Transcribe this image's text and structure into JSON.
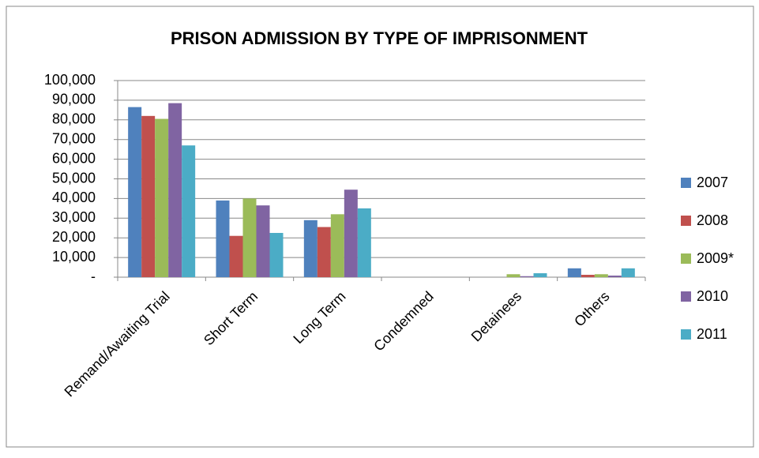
{
  "chart_data": {
    "type": "bar",
    "title": "PRISON ADMISSION BY TYPE OF IMPRISONMENT",
    "categories": [
      "Remand/Awaiting Trial",
      "Short Term",
      "Long Term",
      "Condemned",
      "Detainees",
      "Others"
    ],
    "series": [
      {
        "name": "2007",
        "color": "#4f81bd",
        "values": [
          86500,
          39000,
          29000,
          0,
          0,
          4500
        ]
      },
      {
        "name": "2008",
        "color": "#c0504d",
        "values": [
          82000,
          21000,
          25500,
          0,
          0,
          1200
        ]
      },
      {
        "name": "2009*",
        "color": "#9bbb59",
        "values": [
          80500,
          40000,
          32000,
          0,
          1500,
          1500
        ]
      },
      {
        "name": "2010",
        "color": "#8064a2",
        "values": [
          88500,
          36500,
          44500,
          0,
          500,
          800
        ]
      },
      {
        "name": "2011",
        "color": "#4bacc6",
        "values": [
          67000,
          22500,
          35000,
          0,
          2000,
          4500
        ]
      }
    ],
    "ylim": [
      0,
      100000
    ],
    "yticks": [
      {
        "value": 0,
        "label": "-"
      },
      {
        "value": 10000,
        "label": "10,000"
      },
      {
        "value": 20000,
        "label": "20,000"
      },
      {
        "value": 30000,
        "label": "30,000"
      },
      {
        "value": 40000,
        "label": "40,000"
      },
      {
        "value": 50000,
        "label": "50,000"
      },
      {
        "value": 60000,
        "label": "60,000"
      },
      {
        "value": 70000,
        "label": "70,000"
      },
      {
        "value": 80000,
        "label": "80,000"
      },
      {
        "value": 90000,
        "label": "90,000"
      },
      {
        "value": 100000,
        "label": "100,000"
      }
    ],
    "grid": true,
    "legend": "right"
  }
}
